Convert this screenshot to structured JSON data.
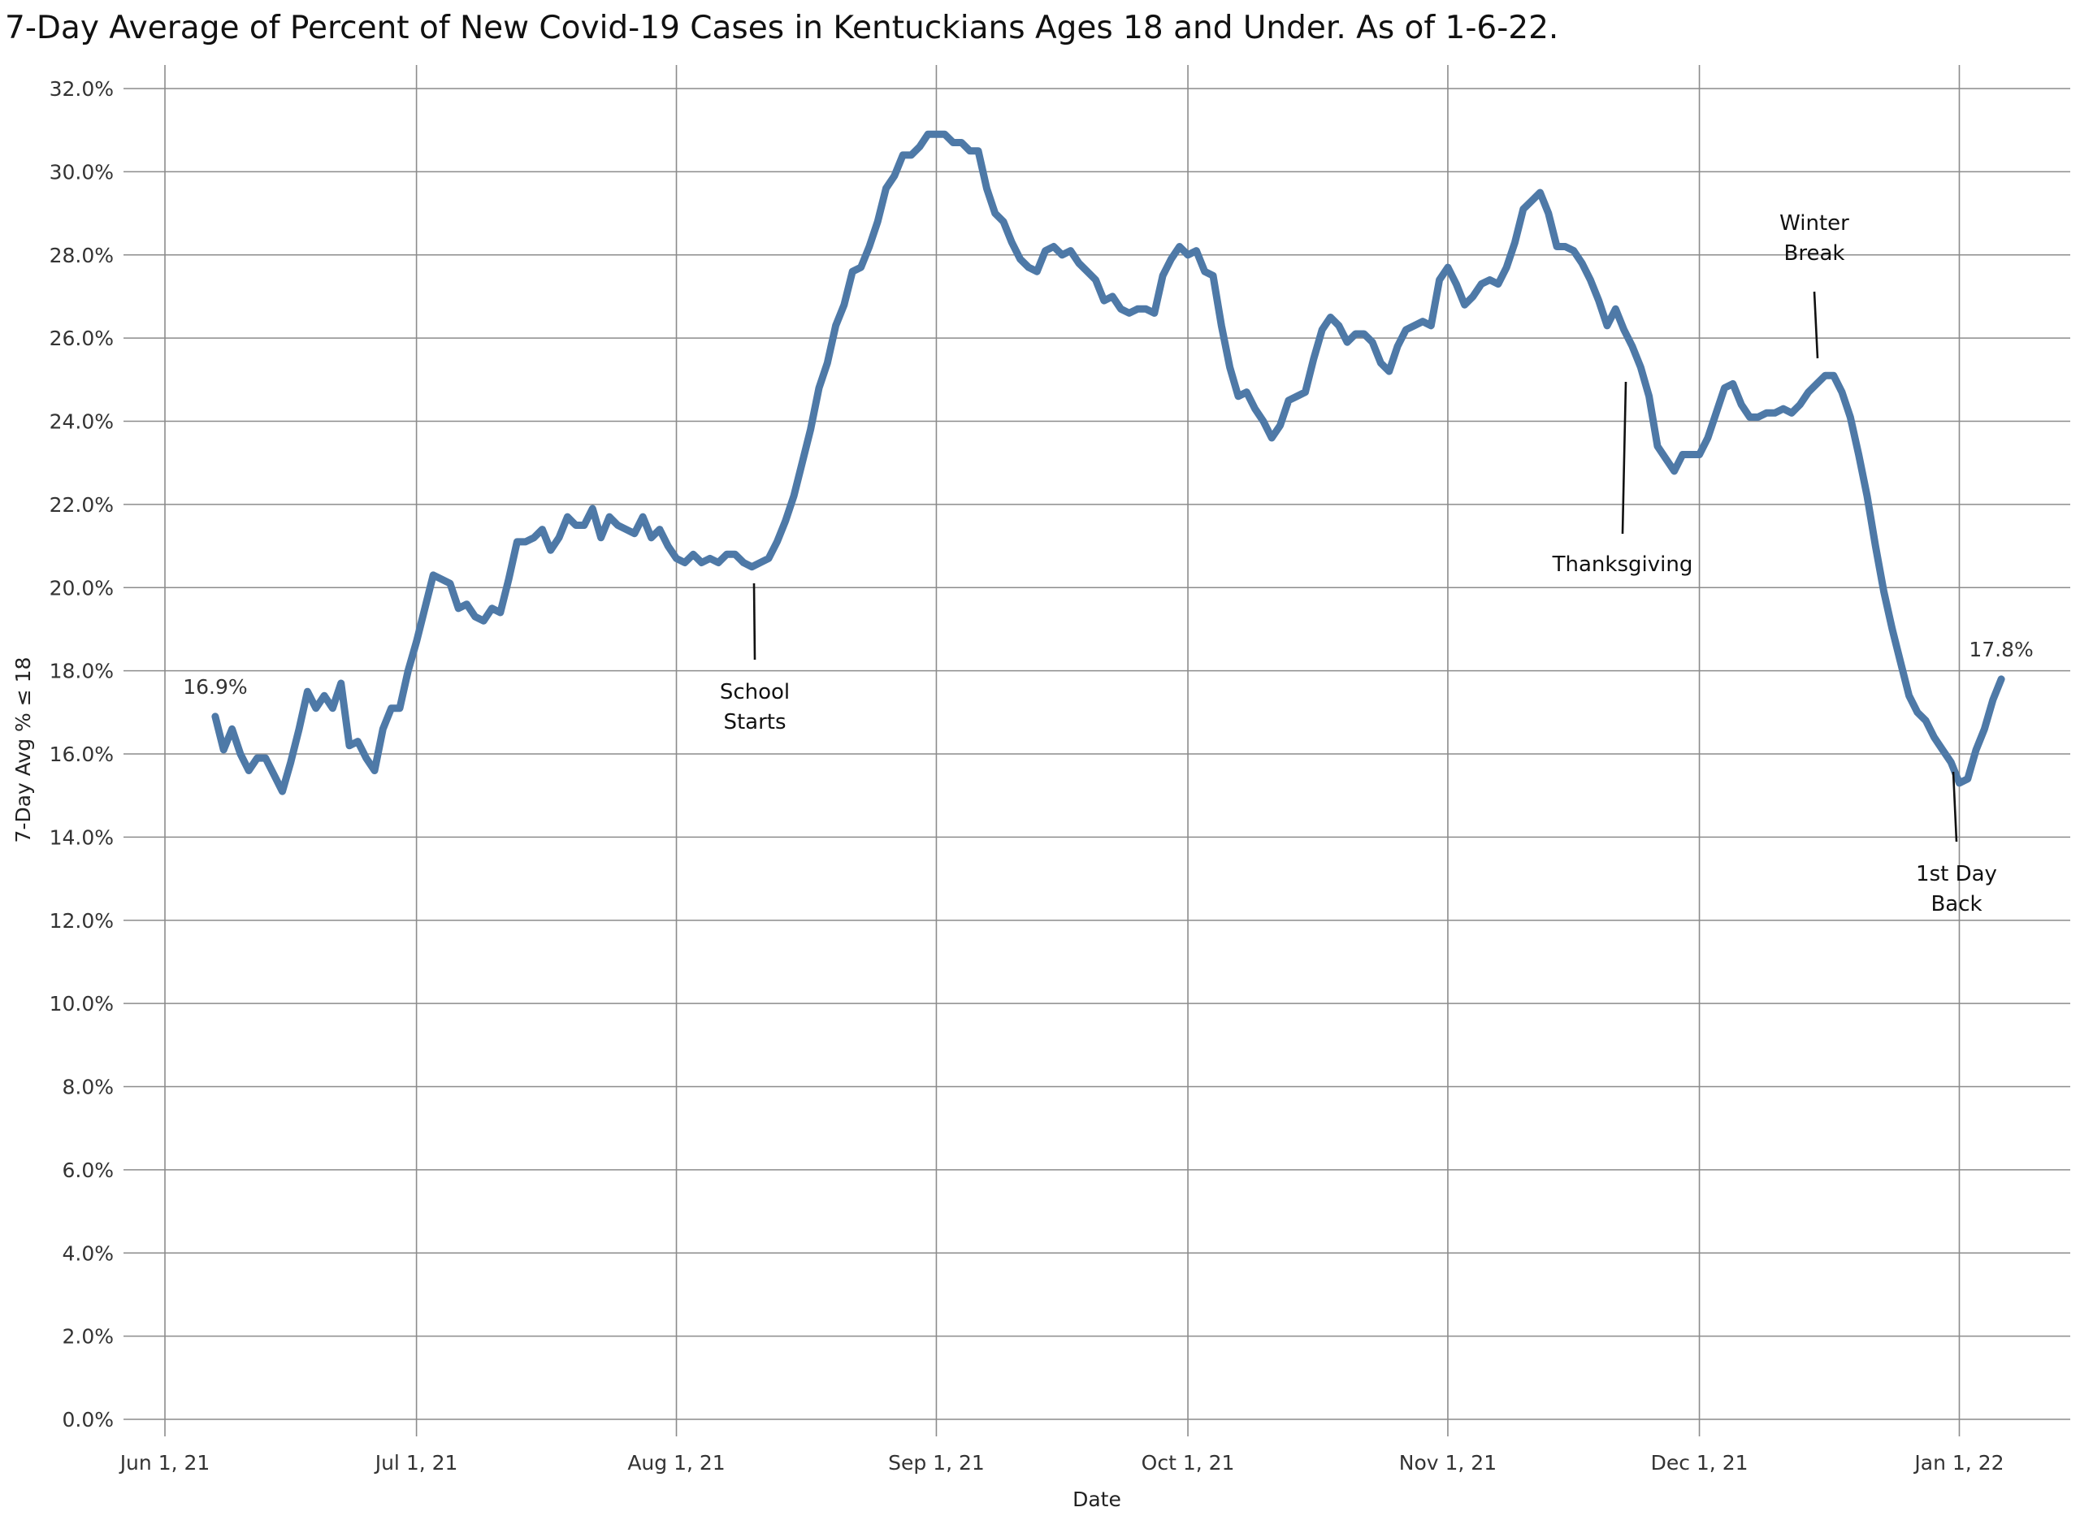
{
  "chart_data": {
    "type": "line",
    "title": "7-Day Average of Percent of New Covid-19 Cases in Kentuckians Ages 18 and Under. As of 1-6-22.",
    "xlabel": "Date",
    "ylabel": "7-Day Avg  % ≤ 18",
    "x_range": [
      "2021-05-29",
      "2022-01-13"
    ],
    "ylim": [
      0,
      32
    ],
    "y_ticks": [
      0,
      2,
      4,
      6,
      8,
      10,
      12,
      14,
      16,
      18,
      20,
      22,
      24,
      26,
      28,
      30,
      32
    ],
    "y_tick_labels": [
      "0.0%",
      "2.0%",
      "4.0%",
      "6.0%",
      "8.0%",
      "10.0%",
      "12.0%",
      "14.0%",
      "16.0%",
      "18.0%",
      "20.0%",
      "22.0%",
      "24.0%",
      "26.0%",
      "28.0%",
      "30.0%",
      "32.0%"
    ],
    "x_ticks": [
      {
        "date": "2021-06-01",
        "label": "Jun 1, 21"
      },
      {
        "date": "2021-07-01",
        "label": "Jul 1, 21"
      },
      {
        "date": "2021-08-01",
        "label": "Aug 1, 21"
      },
      {
        "date": "2021-09-01",
        "label": "Sep 1, 21"
      },
      {
        "date": "2021-10-01",
        "label": "Oct 1, 21"
      },
      {
        "date": "2021-11-01",
        "label": "Nov 1, 21"
      },
      {
        "date": "2021-12-01",
        "label": "Dec 1, 21"
      },
      {
        "date": "2022-01-01",
        "label": "Jan 1, 22"
      }
    ],
    "grid": true,
    "legend": "none",
    "series": [
      {
        "color": "#4e79a7",
        "points": [
          [
            "2021-06-07",
            16.9
          ],
          [
            "2021-06-08",
            16.1
          ],
          [
            "2021-06-09",
            16.6
          ],
          [
            "2021-06-10",
            16.0
          ],
          [
            "2021-06-11",
            15.6
          ],
          [
            "2021-06-12",
            15.9
          ],
          [
            "2021-06-13",
            15.9
          ],
          [
            "2021-06-14",
            15.5
          ],
          [
            "2021-06-15",
            15.1
          ],
          [
            "2021-06-16",
            15.8
          ],
          [
            "2021-06-17",
            16.6
          ],
          [
            "2021-06-18",
            17.5
          ],
          [
            "2021-06-19",
            17.1
          ],
          [
            "2021-06-20",
            17.4
          ],
          [
            "2021-06-21",
            17.1
          ],
          [
            "2021-06-22",
            17.7
          ],
          [
            "2021-06-23",
            16.2
          ],
          [
            "2021-06-24",
            16.3
          ],
          [
            "2021-06-25",
            15.9
          ],
          [
            "2021-06-26",
            15.6
          ],
          [
            "2021-06-27",
            16.6
          ],
          [
            "2021-06-28",
            17.1
          ],
          [
            "2021-06-29",
            17.1
          ],
          [
            "2021-06-30",
            18.0
          ],
          [
            "2021-07-01",
            18.7
          ],
          [
            "2021-07-02",
            19.5
          ],
          [
            "2021-07-03",
            20.3
          ],
          [
            "2021-07-04",
            20.2
          ],
          [
            "2021-07-05",
            20.1
          ],
          [
            "2021-07-06",
            19.5
          ],
          [
            "2021-07-07",
            19.6
          ],
          [
            "2021-07-08",
            19.3
          ],
          [
            "2021-07-09",
            19.2
          ],
          [
            "2021-07-10",
            19.5
          ],
          [
            "2021-07-11",
            19.4
          ],
          [
            "2021-07-12",
            20.2
          ],
          [
            "2021-07-13",
            21.1
          ],
          [
            "2021-07-14",
            21.1
          ],
          [
            "2021-07-15",
            21.2
          ],
          [
            "2021-07-16",
            21.4
          ],
          [
            "2021-07-17",
            20.9
          ],
          [
            "2021-07-18",
            21.2
          ],
          [
            "2021-07-19",
            21.7
          ],
          [
            "2021-07-20",
            21.5
          ],
          [
            "2021-07-21",
            21.5
          ],
          [
            "2021-07-22",
            21.9
          ],
          [
            "2021-07-23",
            21.2
          ],
          [
            "2021-07-24",
            21.7
          ],
          [
            "2021-07-25",
            21.5
          ],
          [
            "2021-07-26",
            21.4
          ],
          [
            "2021-07-27",
            21.3
          ],
          [
            "2021-07-28",
            21.7
          ],
          [
            "2021-07-29",
            21.2
          ],
          [
            "2021-07-30",
            21.4
          ],
          [
            "2021-07-31",
            21.0
          ],
          [
            "2021-08-01",
            20.7
          ],
          [
            "2021-08-02",
            20.6
          ],
          [
            "2021-08-03",
            20.8
          ],
          [
            "2021-08-04",
            20.6
          ],
          [
            "2021-08-05",
            20.7
          ],
          [
            "2021-08-06",
            20.6
          ],
          [
            "2021-08-07",
            20.8
          ],
          [
            "2021-08-08",
            20.8
          ],
          [
            "2021-08-09",
            20.6
          ],
          [
            "2021-08-10",
            20.5
          ],
          [
            "2021-08-11",
            20.6
          ],
          [
            "2021-08-12",
            20.7
          ],
          [
            "2021-08-13",
            21.1
          ],
          [
            "2021-08-14",
            21.6
          ],
          [
            "2021-08-15",
            22.2
          ],
          [
            "2021-08-16",
            23.0
          ],
          [
            "2021-08-17",
            23.8
          ],
          [
            "2021-08-18",
            24.8
          ],
          [
            "2021-08-19",
            25.4
          ],
          [
            "2021-08-20",
            26.3
          ],
          [
            "2021-08-21",
            26.8
          ],
          [
            "2021-08-22",
            27.6
          ],
          [
            "2021-08-23",
            27.7
          ],
          [
            "2021-08-24",
            28.2
          ],
          [
            "2021-08-25",
            28.8
          ],
          [
            "2021-08-26",
            29.6
          ],
          [
            "2021-08-27",
            29.9
          ],
          [
            "2021-08-28",
            30.4
          ],
          [
            "2021-08-29",
            30.4
          ],
          [
            "2021-08-30",
            30.6
          ],
          [
            "2021-08-31",
            30.9
          ],
          [
            "2021-09-01",
            30.9
          ],
          [
            "2021-09-02",
            30.9
          ],
          [
            "2021-09-03",
            30.7
          ],
          [
            "2021-09-04",
            30.7
          ],
          [
            "2021-09-05",
            30.5
          ],
          [
            "2021-09-06",
            30.5
          ],
          [
            "2021-09-07",
            29.6
          ],
          [
            "2021-09-08",
            29.0
          ],
          [
            "2021-09-09",
            28.8
          ],
          [
            "2021-09-10",
            28.3
          ],
          [
            "2021-09-11",
            27.9
          ],
          [
            "2021-09-12",
            27.7
          ],
          [
            "2021-09-13",
            27.6
          ],
          [
            "2021-09-14",
            28.1
          ],
          [
            "2021-09-15",
            28.2
          ],
          [
            "2021-09-16",
            28.0
          ],
          [
            "2021-09-17",
            28.1
          ],
          [
            "2021-09-18",
            27.8
          ],
          [
            "2021-09-19",
            27.6
          ],
          [
            "2021-09-20",
            27.4
          ],
          [
            "2021-09-21",
            26.9
          ],
          [
            "2021-09-22",
            27.0
          ],
          [
            "2021-09-23",
            26.7
          ],
          [
            "2021-09-24",
            26.6
          ],
          [
            "2021-09-25",
            26.7
          ],
          [
            "2021-09-26",
            26.7
          ],
          [
            "2021-09-27",
            26.6
          ],
          [
            "2021-09-28",
            27.5
          ],
          [
            "2021-09-29",
            27.9
          ],
          [
            "2021-09-30",
            28.2
          ],
          [
            "2021-10-01",
            28.0
          ],
          [
            "2021-10-02",
            28.1
          ],
          [
            "2021-10-03",
            27.6
          ],
          [
            "2021-10-04",
            27.5
          ],
          [
            "2021-10-05",
            26.3
          ],
          [
            "2021-10-06",
            25.3
          ],
          [
            "2021-10-07",
            24.6
          ],
          [
            "2021-10-08",
            24.7
          ],
          [
            "2021-10-09",
            24.3
          ],
          [
            "2021-10-10",
            24.0
          ],
          [
            "2021-10-11",
            23.6
          ],
          [
            "2021-10-12",
            23.9
          ],
          [
            "2021-10-13",
            24.5
          ],
          [
            "2021-10-14",
            24.6
          ],
          [
            "2021-10-15",
            24.7
          ],
          [
            "2021-10-16",
            25.5
          ],
          [
            "2021-10-17",
            26.2
          ],
          [
            "2021-10-18",
            26.5
          ],
          [
            "2021-10-19",
            26.3
          ],
          [
            "2021-10-20",
            25.9
          ],
          [
            "2021-10-21",
            26.1
          ],
          [
            "2021-10-22",
            26.1
          ],
          [
            "2021-10-23",
            25.9
          ],
          [
            "2021-10-24",
            25.4
          ],
          [
            "2021-10-25",
            25.2
          ],
          [
            "2021-10-26",
            25.8
          ],
          [
            "2021-10-27",
            26.2
          ],
          [
            "2021-10-28",
            26.3
          ],
          [
            "2021-10-29",
            26.4
          ],
          [
            "2021-10-30",
            26.3
          ],
          [
            "2021-10-31",
            27.4
          ],
          [
            "2021-11-01",
            27.7
          ],
          [
            "2021-11-02",
            27.3
          ],
          [
            "2021-11-03",
            26.8
          ],
          [
            "2021-11-04",
            27.0
          ],
          [
            "2021-11-05",
            27.3
          ],
          [
            "2021-11-06",
            27.4
          ],
          [
            "2021-11-07",
            27.3
          ],
          [
            "2021-11-08",
            27.7
          ],
          [
            "2021-11-09",
            28.3
          ],
          [
            "2021-11-10",
            29.1
          ],
          [
            "2021-11-11",
            29.3
          ],
          [
            "2021-11-12",
            29.5
          ],
          [
            "2021-11-13",
            29.0
          ],
          [
            "2021-11-14",
            28.2
          ],
          [
            "2021-11-15",
            28.2
          ],
          [
            "2021-11-16",
            28.1
          ],
          [
            "2021-11-17",
            27.8
          ],
          [
            "2021-11-18",
            27.4
          ],
          [
            "2021-11-19",
            26.9
          ],
          [
            "2021-11-20",
            26.3
          ],
          [
            "2021-11-21",
            26.7
          ],
          [
            "2021-11-22",
            26.2
          ],
          [
            "2021-11-23",
            25.8
          ],
          [
            "2021-11-24",
            25.3
          ],
          [
            "2021-11-25",
            24.6
          ],
          [
            "2021-11-26",
            23.4
          ],
          [
            "2021-11-27",
            23.1
          ],
          [
            "2021-11-28",
            22.8
          ],
          [
            "2021-11-29",
            23.2
          ],
          [
            "2021-11-30",
            23.2
          ],
          [
            "2021-12-01",
            23.2
          ],
          [
            "2021-12-02",
            23.6
          ],
          [
            "2021-12-03",
            24.2
          ],
          [
            "2021-12-04",
            24.8
          ],
          [
            "2021-12-05",
            24.9
          ],
          [
            "2021-12-06",
            24.4
          ],
          [
            "2021-12-07",
            24.1
          ],
          [
            "2021-12-08",
            24.1
          ],
          [
            "2021-12-09",
            24.2
          ],
          [
            "2021-12-10",
            24.2
          ],
          [
            "2021-12-11",
            24.3
          ],
          [
            "2021-12-12",
            24.2
          ],
          [
            "2021-12-13",
            24.4
          ],
          [
            "2021-12-14",
            24.7
          ],
          [
            "2021-12-15",
            24.9
          ],
          [
            "2021-12-16",
            25.1
          ],
          [
            "2021-12-17",
            25.1
          ],
          [
            "2021-12-18",
            24.7
          ],
          [
            "2021-12-19",
            24.1
          ],
          [
            "2021-12-20",
            23.2
          ],
          [
            "2021-12-21",
            22.2
          ],
          [
            "2021-12-22",
            21.0
          ],
          [
            "2021-12-23",
            19.9
          ],
          [
            "2021-12-24",
            19.0
          ],
          [
            "2021-12-25",
            18.2
          ],
          [
            "2021-12-26",
            17.4
          ],
          [
            "2021-12-27",
            17.0
          ],
          [
            "2021-12-28",
            16.8
          ],
          [
            "2021-12-29",
            16.4
          ],
          [
            "2021-12-30",
            16.1
          ],
          [
            "2021-12-31",
            15.8
          ],
          [
            "2022-01-01",
            15.3
          ],
          [
            "2022-01-02",
            15.4
          ],
          [
            "2022-01-03",
            16.1
          ],
          [
            "2022-01-04",
            16.6
          ],
          [
            "2022-01-05",
            17.3
          ],
          [
            "2022-01-06",
            17.8
          ]
        ]
      }
    ],
    "data_labels": [
      {
        "date": "2021-06-07",
        "value": 16.9,
        "text": "16.9%"
      },
      {
        "date": "2022-01-06",
        "value": 17.8,
        "text": "17.8%"
      }
    ],
    "annotations": [
      {
        "lines": [
          "School",
          "Starts"
        ],
        "date": "2021-08-10"
      },
      {
        "lines": [
          "Thanksgiving"
        ],
        "date": "2021-11-25"
      },
      {
        "lines": [
          "Winter",
          "Break"
        ],
        "date": "2021-12-17"
      },
      {
        "lines": [
          "1st Day",
          "Back"
        ],
        "date": "2022-01-03"
      }
    ]
  }
}
